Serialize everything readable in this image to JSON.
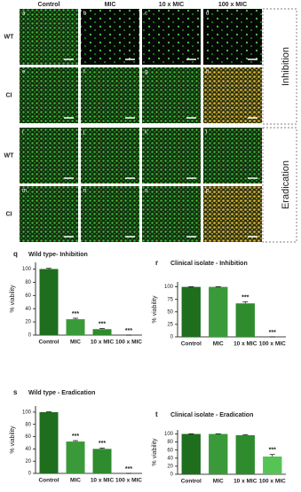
{
  "micrographs": {
    "columns": [
      "Control",
      "MIC",
      "10 x MIC",
      "100 x MIC"
    ],
    "rows": [
      "WT",
      "CI",
      "WT",
      "CI"
    ],
    "panels": [
      "a",
      "b",
      "c",
      "d",
      "e",
      "f",
      "g",
      "h",
      "i",
      "j",
      "k",
      "l",
      "m",
      "n",
      "o",
      "p"
    ],
    "groups": [
      "Inhibition",
      "Eradication"
    ]
  },
  "chart_data": [
    {
      "type": "bar",
      "panel": "q",
      "title": "Wild type- Inhibition",
      "y_label": "% viability",
      "categories": [
        "Control",
        "MIC",
        "10 x MIC",
        "100 x MIC"
      ],
      "values": [
        100,
        24,
        9,
        0
      ],
      "errors": [
        1,
        1.5,
        1,
        0
      ],
      "annotations": [
        null,
        "***",
        "***",
        "***"
      ],
      "colors": [
        "#1e6e1e",
        "#3a9a3a",
        "#2e8b2e",
        "#55c455"
      ],
      "ylim": [
        0,
        110
      ],
      "yticks": [
        0,
        20,
        40,
        60,
        80,
        100
      ]
    },
    {
      "type": "bar",
      "panel": "r",
      "title": "Clinical isolate - Inhibition",
      "y_label": "% viability",
      "categories": [
        "Control",
        "MIC",
        "10 x MIC",
        "100 x MIC"
      ],
      "values": [
        100,
        100,
        67,
        0
      ],
      "errors": [
        0.5,
        0.5,
        3,
        0
      ],
      "annotations": [
        null,
        null,
        "***",
        "***"
      ],
      "colors": [
        "#1e6e1e",
        "#3a9a3a",
        "#2e8b2e",
        "#55c455"
      ],
      "ylim": [
        0,
        110
      ],
      "yticks": [
        0,
        25,
        50,
        75,
        100
      ]
    },
    {
      "type": "bar",
      "panel": "s",
      "title": "Wild type - Eradication",
      "y_label": "% viability",
      "categories": [
        "Control",
        "MIC",
        "10 x MIC",
        "100 x MIC"
      ],
      "values": [
        100,
        52,
        40,
        0
      ],
      "errors": [
        0.5,
        1.5,
        1.5,
        0
      ],
      "annotations": [
        null,
        "***",
        "***",
        "***"
      ],
      "colors": [
        "#1e6e1e",
        "#3a9a3a",
        "#2e8b2e",
        "#55c455"
      ],
      "ylim": [
        0,
        110
      ],
      "yticks": [
        0,
        20,
        40,
        60,
        80,
        100
      ]
    },
    {
      "type": "bar",
      "panel": "t",
      "title": "Clinical isolate - Eradication",
      "y_label": "% viability",
      "categories": [
        "Control",
        "MIC",
        "10 x MIC",
        "100 x MIC"
      ],
      "values": [
        100,
        100,
        97,
        44
      ],
      "errors": [
        0.5,
        0.5,
        1.5,
        5
      ],
      "annotations": [
        null,
        null,
        null,
        "***"
      ],
      "colors": [
        "#1e6e1e",
        "#3a9a3a",
        "#2e8b2e",
        "#55c455"
      ],
      "ylim": [
        0,
        110
      ],
      "yticks": [
        0,
        20,
        40,
        60,
        80,
        100
      ]
    }
  ]
}
